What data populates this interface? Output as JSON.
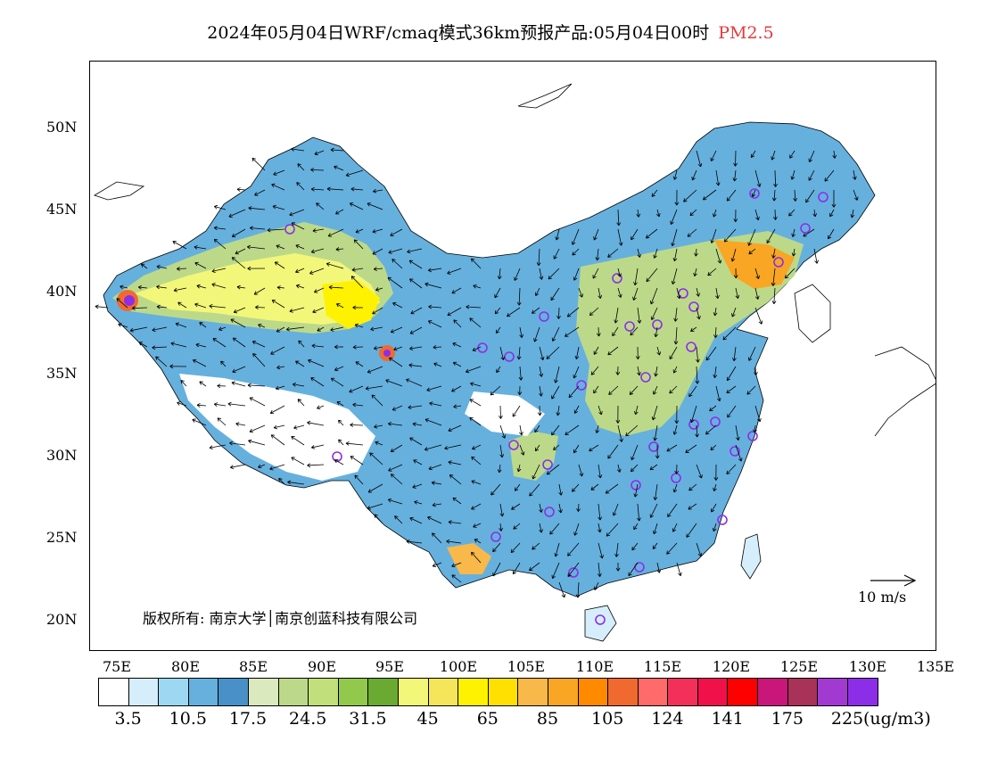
{
  "title": {
    "main": "2024年05月04日WRF/cmaq模式36km预报产品:05月04日00时",
    "variable": "PM2.5"
  },
  "axes": {
    "y_labels": [
      "50N",
      "45N",
      "40N",
      "35N",
      "30N",
      "25N",
      "20N"
    ],
    "x_labels": [
      "75E",
      "80E",
      "85E",
      "90E",
      "95E",
      "100E",
      "105E",
      "110E",
      "115E",
      "120E",
      "125E",
      "130E",
      "135E"
    ]
  },
  "copyright": "版权所有: 南京大学│南京创蓝科技有限公司",
  "wind_reference": "10 m/s",
  "colorbar": {
    "colors": [
      "#ffffff",
      "#d6eefb",
      "#9dd8f3",
      "#66b0de",
      "#4a90c8",
      "#dbe9be",
      "#bcd98a",
      "#c1e07c",
      "#92c84c",
      "#6aaa32",
      "#f2f77a",
      "#f4e55a",
      "#fff200",
      "#ffe000",
      "#f9b84a",
      "#f8a623",
      "#ff8a00",
      "#f06a30",
      "#ff6a6a",
      "#f2305a",
      "#f0104a",
      "#ff0000",
      "#c8167a",
      "#a83258",
      "#a23ad2",
      "#8c2ee8"
    ],
    "labels": [
      "3.5",
      "10.5",
      "17.5",
      "24.5",
      "31.5",
      "45",
      "65",
      "85",
      "105",
      "124",
      "141",
      "175",
      "225"
    ],
    "unit": "(ug/m3)"
  }
}
